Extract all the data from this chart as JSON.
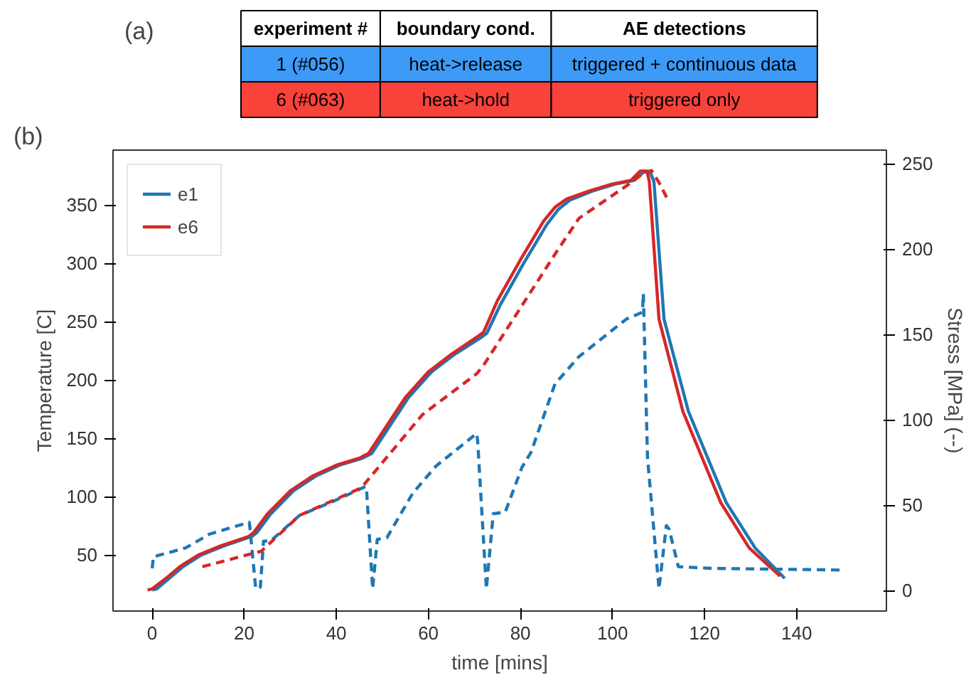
{
  "chart_data": [
    {
      "type": "other",
      "annotations": [
        "(a)",
        "experiment #",
        "boundary cond.",
        "AE detections",
        "1 (#056)",
        "heat->release",
        "triggered + continuous data",
        "6 (#063)",
        "heat->hold",
        "triggered only"
      ],
      "colors": [
        "#ffffff",
        "#3d9bf7",
        "#f94239"
      ]
    },
    {
      "type": "line",
      "annotations": [
        "(b)"
      ],
      "xlabel": "time [mins]",
      "ylabel": "Temperature [C]",
      "y2label": "Stress [MPa] (--)",
      "xlim": [
        -8.5,
        159.5
      ],
      "xticks": [
        0,
        20,
        40,
        60,
        80,
        100,
        120,
        140
      ],
      "ylim": [
        2,
        397
      ],
      "yticks": [
        50,
        100,
        150,
        200,
        250,
        300,
        350
      ],
      "y2lim": [
        -12,
        258
      ],
      "y2ticks": [
        0,
        50,
        100,
        150,
        200,
        250
      ],
      "legend": "top left",
      "grid": false,
      "marker": "none",
      "series": [
        {
          "name": "e1",
          "color": "#1f77b4",
          "line_style": "solid",
          "x": [
            0,
            1,
            3.7,
            6.7,
            10.7,
            15.7,
            21.7,
            22.7,
            25.7,
            30.7,
            35.7,
            40.7,
            45.7,
            47.7,
            50.7,
            55.7,
            60.7,
            65.7,
            71.3,
            72.7,
            75.7,
            80.7,
            85.7,
            88.2,
            90.7,
            95.7,
            100.7,
            104.7,
            106.7,
            108.2,
            109,
            111.2,
            116.5,
            124.7,
            131,
            137.4
          ],
          "values": [
            20,
            21,
            30,
            40,
            50,
            58,
            66,
            69,
            85,
            105,
            118,
            127,
            133,
            137,
            155,
            185,
            207,
            222,
            236,
            240,
            265,
            300,
            333,
            346,
            354,
            362,
            368,
            371,
            378,
            378,
            370,
            252,
            173,
            95,
            56,
            30
          ]
        },
        {
          "name": "e6",
          "color": "#d62728",
          "line_style": "solid",
          "x": [
            -1,
            0,
            3,
            6,
            10,
            15,
            21,
            22,
            25,
            30,
            35,
            40,
            45,
            47,
            50,
            55,
            60,
            65,
            70.6,
            72,
            75,
            80,
            85,
            87.5,
            90,
            95,
            100,
            104,
            106,
            107.5,
            108,
            110.1,
            115.3,
            123.5,
            129.7,
            136.4
          ],
          "values": [
            20,
            21,
            30,
            40,
            50,
            58,
            66,
            69,
            85,
            105,
            118,
            127,
            133,
            137,
            155,
            185,
            207,
            222,
            237,
            241,
            268,
            303,
            336,
            348,
            355,
            362,
            368,
            371,
            379,
            379,
            370,
            252,
            173,
            95,
            56,
            32
          ]
        },
        {
          "color": "#1f77b4",
          "line_style": "dashed",
          "axis": "y2",
          "x": [
            0,
            0.3,
            0.6,
            7.3,
            12.4,
            21.1,
            21.2,
            22.5,
            23.5,
            24.2,
            25.7,
            32,
            39.1,
            46.4,
            46.6,
            47.9,
            48.9,
            51,
            56.6,
            61.7,
            70.5,
            70.7,
            72.6,
            74.1,
            76.7,
            80.3,
            82.3,
            87.5,
            92.7,
            103,
            106.5,
            106.7,
            107.6,
            110.1,
            111.7,
            112.3,
            114.3,
            121.5,
            150.2
          ],
          "values": [
            13,
            20,
            20,
            25,
            33,
            40,
            38,
            1,
            2,
            29,
            29,
            44,
            52,
            61,
            58,
            1,
            30,
            31,
            57,
            73,
            92,
            88,
            1,
            45,
            46,
            72,
            81,
            121,
            137,
            159,
            163,
            174,
            78,
            1,
            38,
            36,
            14,
            13,
            12
          ]
        },
        {
          "color": "#d62728",
          "line_style": "dashed",
          "axis": "y2",
          "x": [
            10.9,
            23.7,
            32,
            45.3,
            46,
            58.7,
            70.5,
            72,
            87.5,
            92.7,
            103,
            107,
            108.5,
            110.1,
            112.2
          ],
          "values": [
            14,
            23,
            44,
            60,
            62,
            103,
            127,
            132,
            197,
            218,
            237,
            245,
            246,
            239,
            228
          ]
        }
      ]
    }
  ]
}
